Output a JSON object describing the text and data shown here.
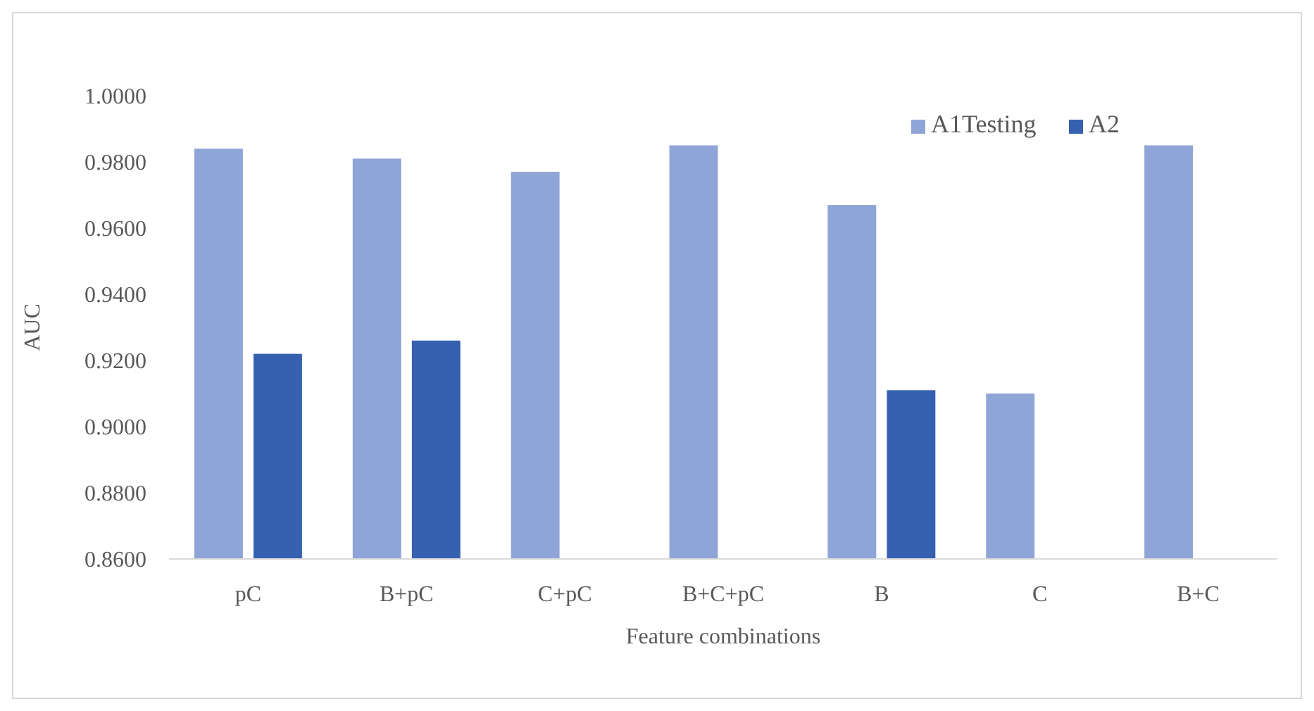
{
  "chart_data": {
    "type": "bar",
    "xlabel": "Feature combinations",
    "ylabel": "AUC",
    "categories": [
      "pC",
      "B+pC",
      "C+pC",
      "B+C+pC",
      "B",
      "C",
      "B+C"
    ],
    "series": [
      {
        "name": "A1Testing",
        "color": "#8fa5d8",
        "values": [
          0.984,
          0.981,
          0.977,
          0.985,
          0.967,
          0.91,
          0.985
        ]
      },
      {
        "name": "A2",
        "color": "#3660b0",
        "values": [
          0.922,
          0.926,
          null,
          null,
          0.911,
          null,
          null
        ]
      }
    ],
    "ylim": [
      0.86,
      1.0
    ],
    "yticks": [
      {
        "value": 0.86,
        "label": "0.8600"
      },
      {
        "value": 0.88,
        "label": "0.8800"
      },
      {
        "value": 0.9,
        "label": "0.9000"
      },
      {
        "value": 0.92,
        "label": "0.9200"
      },
      {
        "value": 0.94,
        "label": "0.9400"
      },
      {
        "value": 0.96,
        "label": "0.9600"
      },
      {
        "value": 0.98,
        "label": "0.9800"
      },
      {
        "value": 1.0,
        "label": "1.0000"
      }
    ],
    "grid": false,
    "legend": "top right"
  }
}
